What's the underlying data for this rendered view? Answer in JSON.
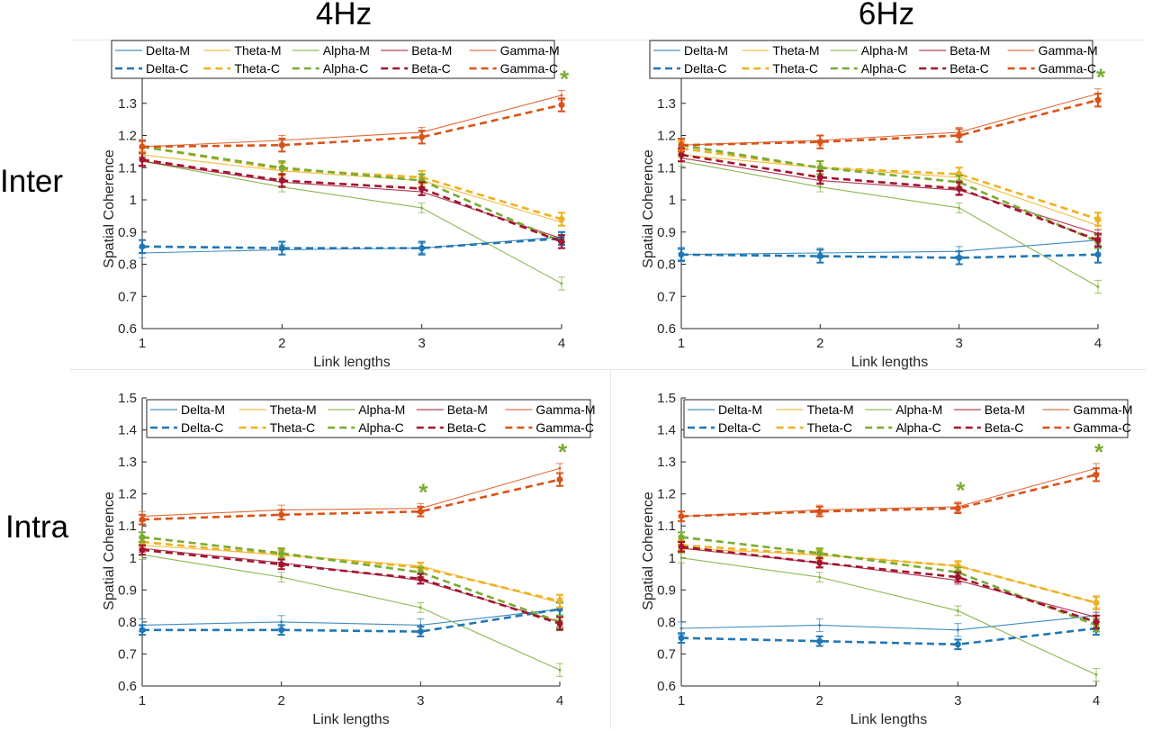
{
  "column_titles": [
    "4Hz",
    "6Hz"
  ],
  "row_titles": [
    "Inter",
    "Intra"
  ],
  "legend": {
    "row1": [
      "Delta-M",
      "Theta-M",
      "Alpha-M",
      "Beta-M",
      "Gamma-M"
    ],
    "row2": [
      "Delta-C",
      "Theta-C",
      "Alpha-C",
      "Beta-C",
      "Gamma-C"
    ]
  },
  "colors": {
    "Delta": "#1f77b4",
    "Theta": "#edb120",
    "Alpha": "#77ac30",
    "Beta": "#a2142f",
    "Gamma": "#d95319",
    "star": "#77ac30"
  },
  "chart_data": [
    {
      "type": "line",
      "xlabel": "Link lengths",
      "ylabel": "Spatial Coherence",
      "x": [
        1,
        2,
        3,
        4
      ],
      "xticks": [
        "1",
        "2",
        "3",
        "4"
      ],
      "yticks": [
        "0.6",
        "0.7",
        "0.8",
        "0.9",
        "1",
        "1.1",
        "1.2",
        "1.3"
      ],
      "ylim": [
        0.6,
        1.4
      ],
      "legend_position": "top",
      "significance_stars_at_x": [
        4
      ],
      "series": [
        {
          "name": "Delta-M",
          "values": [
            0.835,
            0.845,
            0.85,
            0.885
          ],
          "err": [
            0.015,
            0.015,
            0.015,
            0.015
          ]
        },
        {
          "name": "Theta-M",
          "values": [
            1.14,
            1.09,
            1.06,
            0.93
          ],
          "err": [
            0.012,
            0.012,
            0.012,
            0.012
          ]
        },
        {
          "name": "Alpha-M",
          "values": [
            1.12,
            1.04,
            0.975,
            0.74
          ],
          "err": [
            0.015,
            0.015,
            0.015,
            0.02
          ]
        },
        {
          "name": "Beta-M",
          "values": [
            1.12,
            1.055,
            1.025,
            0.88
          ],
          "err": [
            0.012,
            0.012,
            0.012,
            0.012
          ]
        },
        {
          "name": "Gamma-M",
          "values": [
            1.165,
            1.185,
            1.21,
            1.325
          ],
          "err": [
            0.015,
            0.015,
            0.015,
            0.015
          ]
        },
        {
          "name": "Delta-C",
          "values": [
            0.855,
            0.85,
            0.85,
            0.88
          ],
          "err": [
            0.02,
            0.02,
            0.02,
            0.02
          ]
        },
        {
          "name": "Theta-C",
          "values": [
            1.165,
            1.095,
            1.07,
            0.94
          ],
          "err": [
            0.02,
            0.02,
            0.02,
            0.02
          ]
        },
        {
          "name": "Alpha-C",
          "values": [
            1.165,
            1.1,
            1.06,
            0.87
          ],
          "err": [
            0.02,
            0.02,
            0.02,
            0.02
          ]
        },
        {
          "name": "Beta-C",
          "values": [
            1.125,
            1.06,
            1.035,
            0.87
          ],
          "err": [
            0.02,
            0.02,
            0.02,
            0.02
          ]
        },
        {
          "name": "Gamma-C",
          "values": [
            1.165,
            1.17,
            1.195,
            1.295
          ],
          "err": [
            0.02,
            0.02,
            0.02,
            0.02
          ]
        }
      ]
    },
    {
      "type": "line",
      "xlabel": "Link lengths",
      "ylabel": "Spatial Coherence",
      "x": [
        1,
        2,
        3,
        4
      ],
      "xticks": [
        "1",
        "2",
        "3",
        "4"
      ],
      "yticks": [
        "0.6",
        "0.7",
        "0.8",
        "0.9",
        "1",
        "1.1",
        "1.2",
        "1.3"
      ],
      "ylim": [
        0.6,
        1.4
      ],
      "legend_position": "top",
      "significance_stars_at_x": [
        4
      ],
      "series": [
        {
          "name": "Delta-M",
          "values": [
            0.83,
            0.835,
            0.84,
            0.875
          ],
          "err": [
            0.015,
            0.015,
            0.015,
            0.015
          ]
        },
        {
          "name": "Theta-M",
          "values": [
            1.14,
            1.1,
            1.07,
            0.92
          ],
          "err": [
            0.012,
            0.012,
            0.012,
            0.012
          ]
        },
        {
          "name": "Alpha-M",
          "values": [
            1.12,
            1.04,
            0.975,
            0.73
          ],
          "err": [
            0.015,
            0.015,
            0.015,
            0.02
          ]
        },
        {
          "name": "Beta-M",
          "values": [
            1.13,
            1.06,
            1.03,
            0.895
          ],
          "err": [
            0.012,
            0.012,
            0.012,
            0.012
          ]
        },
        {
          "name": "Gamma-M",
          "values": [
            1.17,
            1.185,
            1.21,
            1.33
          ],
          "err": [
            0.015,
            0.015,
            0.015,
            0.015
          ]
        },
        {
          "name": "Delta-C",
          "values": [
            0.83,
            0.825,
            0.82,
            0.83
          ],
          "err": [
            0.02,
            0.02,
            0.02,
            0.025
          ]
        },
        {
          "name": "Theta-C",
          "values": [
            1.16,
            1.1,
            1.08,
            0.94
          ],
          "err": [
            0.02,
            0.02,
            0.02,
            0.02
          ]
        },
        {
          "name": "Alpha-C",
          "values": [
            1.17,
            1.1,
            1.055,
            0.87
          ],
          "err": [
            0.02,
            0.02,
            0.02,
            0.02
          ]
        },
        {
          "name": "Beta-C",
          "values": [
            1.14,
            1.07,
            1.035,
            0.875
          ],
          "err": [
            0.02,
            0.02,
            0.02,
            0.02
          ]
        },
        {
          "name": "Gamma-C",
          "values": [
            1.17,
            1.18,
            1.2,
            1.31
          ],
          "err": [
            0.02,
            0.02,
            0.02,
            0.02
          ]
        }
      ]
    },
    {
      "type": "line",
      "xlabel": "Link lengths",
      "ylabel": "Spatial Coherence",
      "x": [
        1,
        2,
        3,
        4
      ],
      "xticks": [
        "1",
        "2",
        "3",
        "4"
      ],
      "yticks": [
        "0.6",
        "0.7",
        "0.8",
        "0.9",
        "1",
        "1.1",
        "1.2",
        "1.3",
        "1.4",
        "1.5"
      ],
      "ylim": [
        0.6,
        1.5
      ],
      "legend_position": "top",
      "significance_stars_at_x": [
        3,
        4
      ],
      "series": [
        {
          "name": "Delta-M",
          "values": [
            0.79,
            0.8,
            0.79,
            0.84
          ],
          "err": [
            0.02,
            0.02,
            0.02,
            0.02
          ]
        },
        {
          "name": "Theta-M",
          "values": [
            1.04,
            1.01,
            0.975,
            0.86
          ],
          "err": [
            0.012,
            0.012,
            0.012,
            0.015
          ]
        },
        {
          "name": "Alpha-M",
          "values": [
            1.01,
            0.94,
            0.845,
            0.65
          ],
          "err": [
            0.015,
            0.015,
            0.015,
            0.02
          ]
        },
        {
          "name": "Beta-M",
          "values": [
            1.03,
            0.985,
            0.93,
            0.8
          ],
          "err": [
            0.012,
            0.012,
            0.012,
            0.015
          ]
        },
        {
          "name": "Gamma-M",
          "values": [
            1.13,
            1.15,
            1.155,
            1.28
          ],
          "err": [
            0.015,
            0.015,
            0.015,
            0.015
          ]
        },
        {
          "name": "Delta-C",
          "values": [
            0.775,
            0.775,
            0.77,
            0.84
          ],
          "err": [
            0.015,
            0.015,
            0.015,
            0.02
          ]
        },
        {
          "name": "Theta-C",
          "values": [
            1.05,
            1.01,
            0.97,
            0.865
          ],
          "err": [
            0.015,
            0.015,
            0.015,
            0.02
          ]
        },
        {
          "name": "Alpha-C",
          "values": [
            1.065,
            1.015,
            0.955,
            0.8
          ],
          "err": [
            0.015,
            0.015,
            0.015,
            0.02
          ]
        },
        {
          "name": "Beta-C",
          "values": [
            1.025,
            0.98,
            0.935,
            0.795
          ],
          "err": [
            0.015,
            0.015,
            0.015,
            0.02
          ]
        },
        {
          "name": "Gamma-C",
          "values": [
            1.12,
            1.135,
            1.145,
            1.245
          ],
          "err": [
            0.015,
            0.015,
            0.015,
            0.02
          ]
        }
      ]
    },
    {
      "type": "line",
      "xlabel": "Link lengths",
      "ylabel": "Spatial Coherence",
      "x": [
        1,
        2,
        3,
        4
      ],
      "xticks": [
        "1",
        "2",
        "3",
        "4"
      ],
      "yticks": [
        "0.6",
        "0.7",
        "0.8",
        "0.9",
        "1",
        "1.1",
        "1.2",
        "1.3",
        "1.4",
        "1.5"
      ],
      "ylim": [
        0.6,
        1.5
      ],
      "legend_position": "top",
      "significance_stars_at_x": [
        3,
        4
      ],
      "series": [
        {
          "name": "Delta-M",
          "values": [
            0.78,
            0.79,
            0.775,
            0.82
          ],
          "err": [
            0.02,
            0.02,
            0.02,
            0.02
          ]
        },
        {
          "name": "Theta-M",
          "values": [
            1.03,
            1.01,
            0.975,
            0.86
          ],
          "err": [
            0.012,
            0.012,
            0.012,
            0.015
          ]
        },
        {
          "name": "Alpha-M",
          "values": [
            1.0,
            0.94,
            0.835,
            0.635
          ],
          "err": [
            0.015,
            0.015,
            0.015,
            0.02
          ]
        },
        {
          "name": "Beta-M",
          "values": [
            1.03,
            0.985,
            0.93,
            0.815
          ],
          "err": [
            0.012,
            0.012,
            0.012,
            0.015
          ]
        },
        {
          "name": "Gamma-M",
          "values": [
            1.13,
            1.15,
            1.16,
            1.28
          ],
          "err": [
            0.015,
            0.015,
            0.015,
            0.015
          ]
        },
        {
          "name": "Delta-C",
          "values": [
            0.75,
            0.74,
            0.73,
            0.78
          ],
          "err": [
            0.015,
            0.015,
            0.015,
            0.02
          ]
        },
        {
          "name": "Theta-C",
          "values": [
            1.04,
            1.01,
            0.975,
            0.86
          ],
          "err": [
            0.015,
            0.015,
            0.015,
            0.02
          ]
        },
        {
          "name": "Alpha-C",
          "values": [
            1.065,
            1.015,
            0.955,
            0.79
          ],
          "err": [
            0.015,
            0.015,
            0.015,
            0.02
          ]
        },
        {
          "name": "Beta-C",
          "values": [
            1.035,
            0.985,
            0.94,
            0.8
          ],
          "err": [
            0.015,
            0.015,
            0.015,
            0.02
          ]
        },
        {
          "name": "Gamma-C",
          "values": [
            1.13,
            1.145,
            1.155,
            1.26
          ],
          "err": [
            0.015,
            0.015,
            0.015,
            0.02
          ]
        }
      ]
    }
  ]
}
